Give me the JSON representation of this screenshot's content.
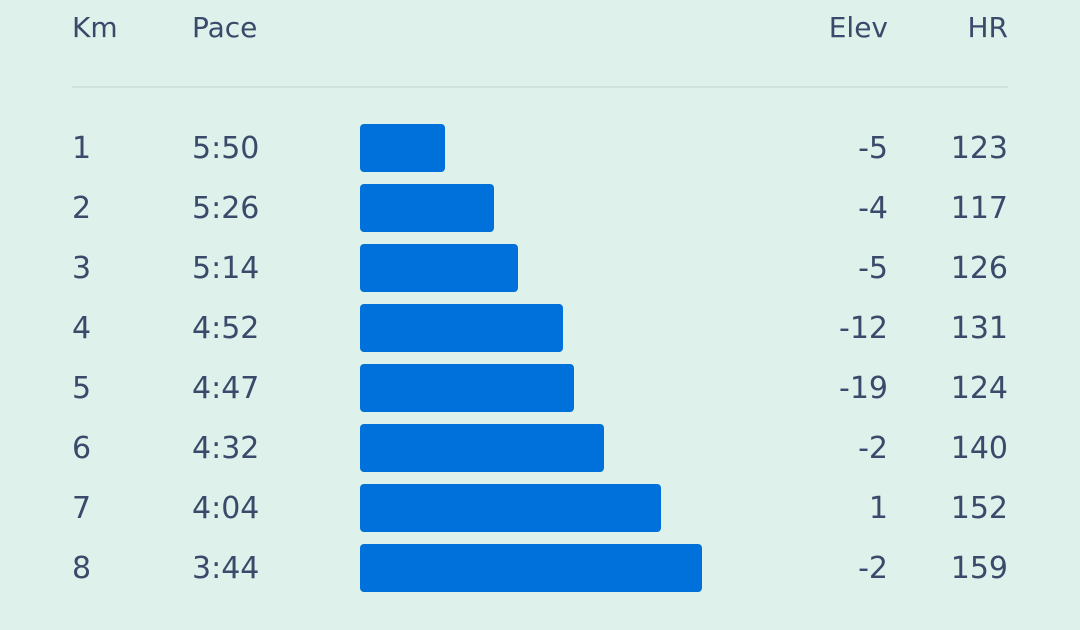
{
  "header": {
    "km": "Km",
    "pace": "Pace",
    "elev": "Elev",
    "hr": "HR"
  },
  "bar_color": "#0070da",
  "bar_scale": {
    "min_seconds": 224,
    "max_seconds": 350
  },
  "splits": [
    {
      "km": "1",
      "pace": "5:50",
      "pace_seconds": 350,
      "elev": "-5",
      "hr": "123"
    },
    {
      "km": "2",
      "pace": "5:26",
      "pace_seconds": 326,
      "elev": "-4",
      "hr": "117"
    },
    {
      "km": "3",
      "pace": "5:14",
      "pace_seconds": 314,
      "elev": "-5",
      "hr": "126"
    },
    {
      "km": "4",
      "pace": "4:52",
      "pace_seconds": 292,
      "elev": "-12",
      "hr": "131"
    },
    {
      "km": "5",
      "pace": "4:47",
      "pace_seconds": 287,
      "elev": "-19",
      "hr": "124"
    },
    {
      "km": "6",
      "pace": "4:32",
      "pace_seconds": 272,
      "elev": "-2",
      "hr": "140"
    },
    {
      "km": "7",
      "pace": "4:04",
      "pace_seconds": 244,
      "elev": "1",
      "hr": "152"
    },
    {
      "km": "8",
      "pace": "3:44",
      "pace_seconds": 224,
      "elev": "-2",
      "hr": "159"
    }
  ]
}
